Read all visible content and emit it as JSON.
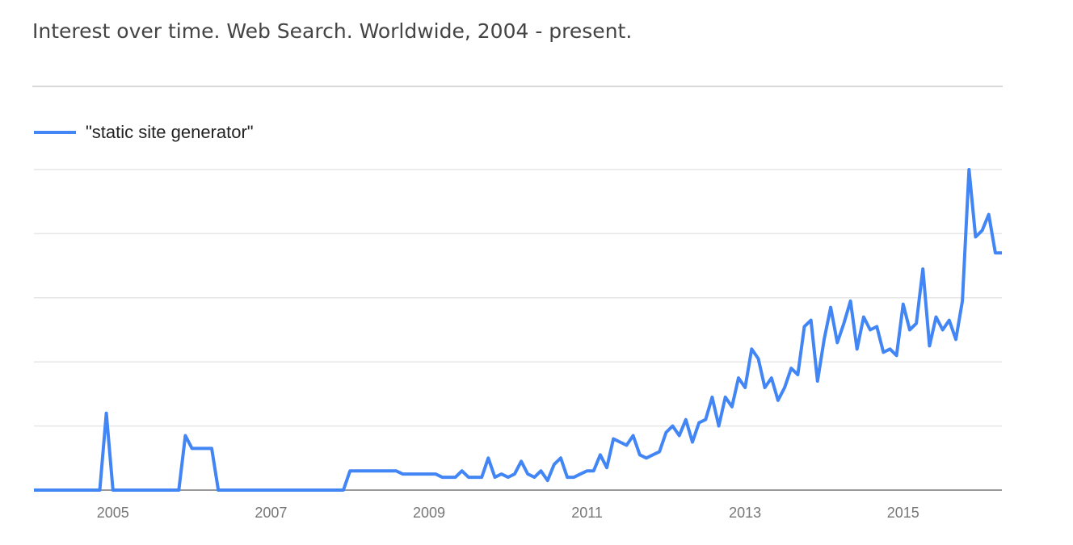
{
  "chart_data": {
    "type": "line",
    "title": "Interest over time. Web Search. Worldwide, 2004 - present.",
    "categories": [
      null,
      null,
      null,
      null,
      null,
      null,
      null,
      null,
      null,
      null,
      null,
      null,
      "2005",
      null,
      null,
      null,
      null,
      null,
      null,
      null,
      null,
      null,
      null,
      null,
      null,
      null,
      null,
      null,
      null,
      null,
      null,
      null,
      null,
      null,
      null,
      null,
      "2007",
      null,
      null,
      null,
      null,
      null,
      null,
      null,
      null,
      null,
      null,
      null,
      null,
      null,
      null,
      null,
      null,
      null,
      null,
      null,
      null,
      null,
      null,
      null,
      "2009",
      null,
      null,
      null,
      null,
      null,
      null,
      null,
      null,
      null,
      null,
      null,
      null,
      null,
      null,
      null,
      null,
      null,
      null,
      null,
      null,
      null,
      null,
      null,
      "2011",
      null,
      null,
      null,
      null,
      null,
      null,
      null,
      null,
      null,
      null,
      null,
      null,
      null,
      null,
      null,
      null,
      null,
      null,
      null,
      null,
      null,
      null,
      null,
      "2013",
      null,
      null,
      null,
      null,
      null,
      null,
      null,
      null,
      null,
      null,
      null,
      null,
      null,
      null,
      null,
      null,
      null,
      null,
      null,
      null,
      null,
      null,
      null,
      "2015",
      null,
      null,
      null,
      null,
      null,
      null,
      null,
      null,
      null,
      null,
      null,
      null,
      null,
      null,
      null
    ],
    "series": [
      {
        "name": "\"static site generator\"",
        "color": "#4285f4",
        "values": [
          0,
          0,
          0,
          0,
          0,
          0,
          0,
          0,
          0,
          0,
          0,
          24,
          0,
          0,
          0,
          0,
          0,
          0,
          0,
          0,
          0,
          0,
          0,
          17,
          13,
          13,
          13,
          13,
          0,
          0,
          0,
          0,
          0,
          0,
          0,
          0,
          0,
          0,
          0,
          0,
          0,
          0,
          0,
          0,
          0,
          0,
          0,
          0,
          6,
          6,
          6,
          6,
          6,
          6,
          6,
          6,
          5,
          5,
          5,
          5,
          5,
          5,
          4,
          4,
          4,
          6,
          4,
          4,
          4,
          10,
          4,
          5,
          4,
          5,
          9,
          5,
          4,
          6,
          3,
          8,
          10,
          4,
          4,
          5,
          6,
          6,
          11,
          7,
          16,
          15,
          14,
          17,
          11,
          10,
          11,
          12,
          18,
          20,
          17,
          22,
          15,
          21,
          22,
          29,
          20,
          29,
          26,
          35,
          32,
          44,
          41,
          32,
          35,
          28,
          32,
          38,
          36,
          51,
          53,
          34,
          47,
          57,
          46,
          52,
          59,
          44,
          54,
          50,
          51,
          43,
          44,
          42,
          58,
          50,
          52,
          69,
          45,
          54,
          50,
          53,
          47,
          59,
          100,
          79,
          81,
          86,
          74,
          74
        ]
      }
    ],
    "ylim": [
      0,
      100
    ],
    "yticks": [
      0,
      20,
      40,
      60,
      80,
      100
    ],
    "grid": true
  }
}
